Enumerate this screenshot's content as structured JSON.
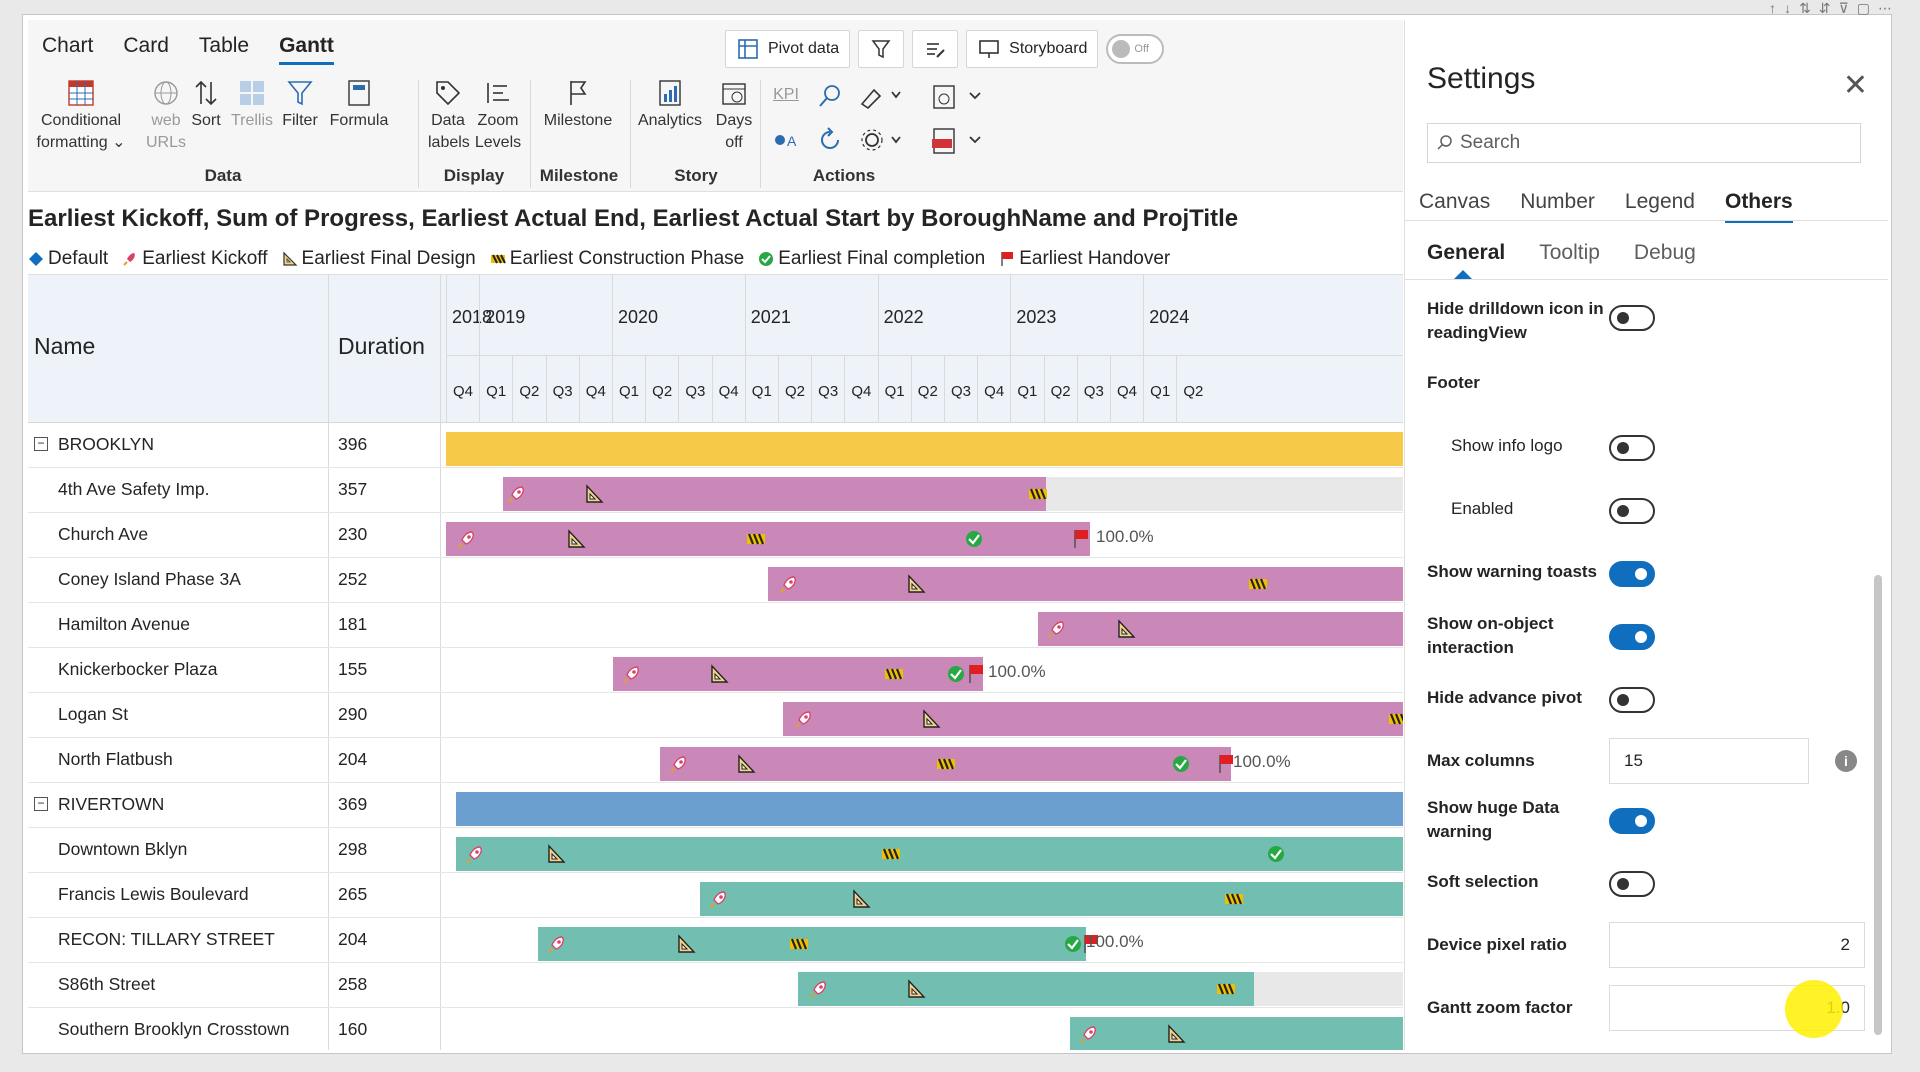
{
  "ribbon": {
    "tabs": [
      "Chart",
      "Card",
      "Table",
      "Gantt"
    ],
    "active_tab": "Gantt",
    "top_buttons": {
      "pivot": "Pivot data",
      "storyboard": "Storyboard",
      "toggle": "Off"
    },
    "groups": {
      "data": "Data",
      "display": "Display",
      "milestone": "Milestone",
      "story": "Story",
      "actions": "Actions"
    },
    "buttons": {
      "conditional": "Conditional formatting",
      "web": "web URLs",
      "sort": "Sort",
      "trellis": "Trellis",
      "filter": "Filter",
      "formula": "Formula",
      "data_labels": "Data labels",
      "zoom_levels": "Zoom Levels",
      "milestone": "Milestone",
      "analytics": "Analytics",
      "days_off": "Days off",
      "kpi": "KPI"
    }
  },
  "chart": {
    "title": "Earliest Kickoff, Sum of Progress, Earliest Actual End, Earliest Actual Start by BoroughName and ProjTitle",
    "legend": [
      {
        "label": "Default"
      },
      {
        "label": "Earliest Kickoff"
      },
      {
        "label": "Earliest Final Design"
      },
      {
        "label": "Earliest Construction Phase"
      },
      {
        "label": "Earliest Final completion"
      },
      {
        "label": "Earliest Handover"
      }
    ]
  },
  "grid": {
    "col_name": "Name",
    "col_duration": "Duration",
    "years": [
      "2018",
      "2019",
      "2020",
      "2021",
      "2022",
      "2023",
      "2024"
    ],
    "quarters": [
      "Q4",
      "Q1",
      "Q2",
      "Q3",
      "Q4",
      "Q1",
      "Q2",
      "Q3",
      "Q4",
      "Q1",
      "Q2",
      "Q3",
      "Q4",
      "Q1",
      "Q2",
      "Q3",
      "Q4",
      "Q1",
      "Q2",
      "Q3",
      "Q4",
      "Q1",
      "Q2"
    ],
    "rows": [
      {
        "name": "BROOKLYN",
        "duration": "396",
        "group": true
      },
      {
        "name": "4th Ave Safety Imp.",
        "duration": "357"
      },
      {
        "name": "Church Ave",
        "duration": "230",
        "pct": "100.0%"
      },
      {
        "name": "Coney Island Phase 3A",
        "duration": "252"
      },
      {
        "name": "Hamilton Avenue",
        "duration": "181"
      },
      {
        "name": "Knickerbocker Plaza",
        "duration": "155",
        "pct": "100.0%"
      },
      {
        "name": "Logan St",
        "duration": "290"
      },
      {
        "name": "North Flatbush",
        "duration": "204",
        "pct": "100.0%"
      },
      {
        "name": "RIVERTOWN",
        "duration": "369",
        "group": true
      },
      {
        "name": "Downtown Bklyn",
        "duration": "298"
      },
      {
        "name": "Francis Lewis Boulevard",
        "duration": "265"
      },
      {
        "name": "RECON: TILLARY STREET",
        "duration": "204",
        "pct": "100.0%"
      },
      {
        "name": "S86th Street",
        "duration": "258"
      },
      {
        "name": "Southern Brooklyn Crosstown",
        "duration": "160"
      }
    ]
  },
  "settings": {
    "title": "Settings",
    "search_placeholder": "Search",
    "tabs": [
      "Canvas",
      "Number",
      "Legend",
      "Others"
    ],
    "active_tab": "Others",
    "subtabs": [
      "General",
      "Tooltip",
      "Debug"
    ],
    "options": {
      "hide_drill": "Hide drilldown icon in readingView",
      "footer": "Footer",
      "show_info_logo": "Show info logo",
      "enabled": "Enabled",
      "warning_toasts": "Show warning toasts",
      "on_object": "Show on-object interaction",
      "hide_pivot": "Hide advance pivot",
      "max_columns": "Max columns",
      "max_columns_value": "15",
      "huge_data": "Show huge Data warning",
      "soft_selection": "Soft selection",
      "dpr": "Device pixel ratio",
      "dpr_value": "2",
      "zoom_factor": "Gantt zoom factor",
      "zoom_factor_value": "1.0"
    },
    "toggles": {
      "hide_drill": false,
      "show_info_logo": false,
      "enabled": false,
      "warning_toasts": true,
      "on_object": true,
      "hide_pivot": false,
      "huge_data": true,
      "soft_selection": false
    }
  },
  "colors": {
    "accent": "#106ebe",
    "brooklyn_group": "#f7c948",
    "brooklyn_task": "#c988b7",
    "rivertown_group": "#6a9fcf",
    "rivertown_task": "#72bfb2",
    "header_bg": "#edf3f9"
  }
}
